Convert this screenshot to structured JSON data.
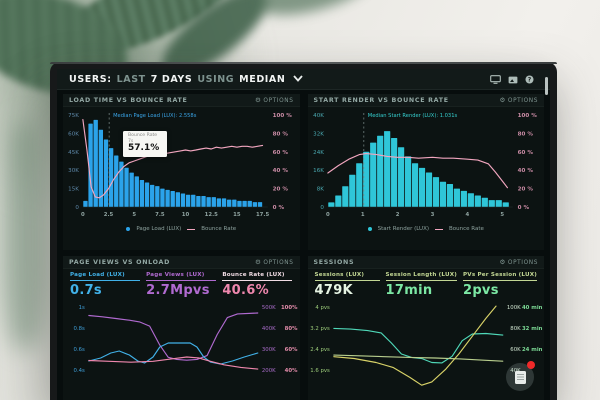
{
  "header": {
    "parts": [
      {
        "t": "USERS:"
      },
      {
        "t": "LAST"
      },
      {
        "t": "7 DAYS"
      },
      {
        "t": "USING"
      },
      {
        "t": "MEDIAN"
      }
    ],
    "dropdown_icon": "chevron-down-icon",
    "icons": [
      "monitor-icon",
      "image-icon",
      "help-icon"
    ]
  },
  "options": {
    "label": "OPTIONS",
    "icon": "gear-icon"
  },
  "panels": {
    "load_time": {
      "title": "LOAD TIME VS BOUNCE RATE"
    },
    "start_render": {
      "title": "START RENDER VS BOUNCE RATE"
    },
    "page_views": {
      "title": "PAGE VIEWS VS ONLOAD",
      "metrics": [
        {
          "label": "Page Load (LUX)",
          "value": "0.7s",
          "color": "#41b1e8",
          "label_color": "#41b1e8"
        },
        {
          "label": "Page Views (LUX)",
          "value": "2.7Mpvs",
          "color": "#b06ad0",
          "label_color": "#b06ad0"
        },
        {
          "label": "Bounce Rate (LUX)",
          "value": "40.6%",
          "color": "#ef87ad",
          "label_color": "#f2dde5"
        }
      ]
    },
    "sessions": {
      "title": "SESSIONS",
      "metrics": [
        {
          "label": "Sessions (LUX)",
          "value": "479K",
          "color": "#e6f4e3",
          "label_color": "#c3d794"
        },
        {
          "label": "Session Length (LUX)",
          "value": "17min",
          "color": "#7ce8a4",
          "label_color": "#c3d794"
        },
        {
          "label": "PVs Per Session (LUX)",
          "value": "2pvs",
          "color": "#7ce8a4",
          "label_color": "#c3d794"
        }
      ]
    }
  },
  "fab": {
    "icon": "notes-icon",
    "badge": "notification-dot",
    "badge_color": "#ef2929"
  },
  "chart_data": [
    {
      "id": "load_time",
      "type": "histogram_line",
      "title": "LOAD TIME VS BOUNCE RATE",
      "xmax": 18,
      "bar_max": 75,
      "bar_width_s": 0.5,
      "bars": [
        5,
        68,
        71,
        63,
        55,
        48,
        42,
        37,
        32,
        28,
        25,
        22,
        20,
        18,
        17,
        15,
        14,
        13,
        12,
        11,
        10,
        10,
        9,
        9,
        8,
        8,
        7,
        7,
        6,
        6,
        5,
        5,
        5,
        4,
        4
      ],
      "bar_color": "#2ba3ea",
      "left_ticks": [
        "75K",
        "60K",
        "45K",
        "30K",
        "15K",
        "0"
      ],
      "left_color": "#5d87a8",
      "right_ticks": [
        "100 %",
        "80 %",
        "60 %",
        "40 %",
        "20 %",
        "0 %"
      ],
      "right_color": "#c98ba4",
      "x_ticks": [
        0,
        2.5,
        5,
        7.5,
        10,
        12.5,
        15,
        17.5
      ],
      "x_color": "#8fa3a0",
      "line": {
        "name": "Bounce Rate",
        "color": "#f2a6bf",
        "points": [
          [
            0,
            95
          ],
          [
            0.4,
            62
          ],
          [
            0.8,
            22
          ],
          [
            1.2,
            11
          ],
          [
            1.6,
            10
          ],
          [
            2,
            13
          ],
          [
            2.5,
            20
          ],
          [
            3,
            30
          ],
          [
            3.5,
            38
          ],
          [
            4,
            44
          ],
          [
            4.5,
            48
          ],
          [
            5,
            50
          ],
          [
            5.5,
            52
          ],
          [
            6,
            54
          ],
          [
            6.5,
            56
          ],
          [
            7,
            57.1
          ],
          [
            7.5,
            57
          ],
          [
            8,
            58
          ],
          [
            8.5,
            59
          ],
          [
            9,
            60
          ],
          [
            9.5,
            61
          ],
          [
            10,
            62
          ],
          [
            10.5,
            61
          ],
          [
            11,
            62
          ],
          [
            11.5,
            63
          ],
          [
            12,
            64
          ],
          [
            12.5,
            63
          ],
          [
            13,
            65
          ],
          [
            13.5,
            64
          ],
          [
            14,
            65
          ],
          [
            14.5,
            66
          ],
          [
            15,
            65
          ],
          [
            15.5,
            66
          ],
          [
            16,
            66
          ],
          [
            16.5,
            65
          ],
          [
            17,
            66
          ],
          [
            17.5,
            67
          ]
        ]
      },
      "median": {
        "value": 2.558,
        "label": "Median Page Load (LUX): 2.558s",
        "color": "#3aa5e8"
      },
      "legend": [
        {
          "swatch": "dot",
          "color": "#2ba3ea",
          "label": "Page Load (LUX)"
        },
        {
          "swatch": "line",
          "color": "#f2a6bf",
          "label": "Bounce Rate"
        }
      ],
      "tooltip": {
        "title": "Bounce Rate",
        "x_label": "7s",
        "value": "57.1%",
        "at_x": 7,
        "at_y": 57.1
      }
    },
    {
      "id": "start_render",
      "type": "histogram_line",
      "title": "START RENDER VS BOUNCE RATE",
      "xmax": 5.3,
      "bar_max": 40,
      "bar_width_s": 0.2,
      "bars": [
        2,
        5,
        9,
        14,
        19,
        24,
        28,
        31,
        33,
        30,
        26,
        22,
        19,
        17,
        15,
        13,
        11,
        10,
        8,
        7,
        6,
        5,
        4,
        3,
        3,
        2
      ],
      "bar_color": "#2fc6d8",
      "left_ticks": [
        "40K",
        "32K",
        "24K",
        "16K",
        "8K",
        "0"
      ],
      "left_color": "#4aa8b0",
      "right_ticks": [
        "100 %",
        "80 %",
        "60 %",
        "40 %",
        "20 %",
        "0 %"
      ],
      "right_color": "#c98ba4",
      "x_ticks": [
        0,
        1,
        2,
        3,
        4,
        5
      ],
      "x_color": "#8fa3a0",
      "line": {
        "name": "Bounce Rate",
        "color": "#f2a6bf",
        "points": [
          [
            0,
            37
          ],
          [
            0.3,
            45
          ],
          [
            0.6,
            52
          ],
          [
            0.9,
            57
          ],
          [
            1.1,
            58
          ],
          [
            1.4,
            57
          ],
          [
            1.7,
            55
          ],
          [
            2,
            54
          ],
          [
            2.3,
            54
          ],
          [
            2.6,
            53
          ],
          [
            3,
            54
          ],
          [
            3.3,
            53
          ],
          [
            3.6,
            53
          ],
          [
            4,
            52
          ],
          [
            4.3,
            51
          ],
          [
            4.6,
            47
          ],
          [
            4.8,
            38
          ],
          [
            5.05,
            26
          ],
          [
            5.15,
            21
          ]
        ]
      },
      "median": {
        "value": 1.031,
        "label": "Median Start Render (LUX): 1.031s",
        "color": "#35cfcf"
      },
      "legend": [
        {
          "swatch": "dot",
          "color": "#2fc6d8",
          "label": "Start Render (LUX)"
        },
        {
          "swatch": "line",
          "color": "#f2a6bf",
          "label": "Bounce Rate"
        }
      ]
    },
    {
      "id": "pageviews_onload",
      "type": "multi_line",
      "title": "PAGE VIEWS VS ONLOAD",
      "left_ticks": [
        "1s",
        "0.8s",
        "0.6s",
        "0.4s"
      ],
      "left_color": "#3f9fd8",
      "right_ticks": [
        [
          "500K",
          "100%"
        ],
        [
          "400K",
          "80%"
        ],
        [
          "300K",
          "60%"
        ],
        [
          "200K",
          "40%"
        ]
      ],
      "right_colors": [
        "#a86cc8",
        "#e08aa8"
      ],
      "series": [
        {
          "name": "Page Views (LUX)",
          "color": "#b06ad0",
          "range": [
            150,
            520
          ],
          "points": [
            [
              0,
              470
            ],
            [
              0.08,
              464
            ],
            [
              0.16,
              456
            ],
            [
              0.24,
              448
            ],
            [
              0.3,
              440
            ],
            [
              0.36,
              420
            ],
            [
              0.42,
              330
            ],
            [
              0.47,
              272
            ],
            [
              0.52,
              262
            ],
            [
              0.58,
              258
            ],
            [
              0.64,
              262
            ],
            [
              0.7,
              280
            ],
            [
              0.76,
              380
            ],
            [
              0.82,
              460
            ],
            [
              0.88,
              478
            ],
            [
              1,
              482
            ]
          ]
        },
        {
          "name": "Page Load (LUX)",
          "color": "#41b1e8",
          "range": [
            0.3,
            1.08
          ],
          "points": [
            [
              0,
              0.52
            ],
            [
              0.07,
              0.55
            ],
            [
              0.13,
              0.6
            ],
            [
              0.18,
              0.62
            ],
            [
              0.24,
              0.58
            ],
            [
              0.29,
              0.52
            ],
            [
              0.33,
              0.5
            ],
            [
              0.38,
              0.56
            ],
            [
              0.42,
              0.66
            ],
            [
              0.47,
              0.7
            ],
            [
              0.55,
              0.7
            ],
            [
              0.6,
              0.7
            ],
            [
              0.64,
              0.66
            ],
            [
              0.68,
              0.56
            ],
            [
              0.72,
              0.51
            ],
            [
              0.78,
              0.49
            ],
            [
              0.85,
              0.52
            ],
            [
              0.92,
              0.56
            ],
            [
              1,
              0.6
            ]
          ]
        },
        {
          "name": "Bounce Rate (LUX)",
          "color": "#ef87ad",
          "range": [
            18,
            108
          ],
          "points": [
            [
              0,
              44
            ],
            [
              0.12,
              43
            ],
            [
              0.25,
              42
            ],
            [
              0.38,
              43
            ],
            [
              0.5,
              46
            ],
            [
              0.58,
              48
            ],
            [
              0.65,
              47
            ],
            [
              0.72,
              43
            ],
            [
              0.8,
              39
            ],
            [
              0.9,
              36
            ],
            [
              1,
              34
            ]
          ]
        }
      ]
    },
    {
      "id": "sessions",
      "type": "multi_line",
      "title": "SESSIONS",
      "left_ticks": [
        "4 pvs",
        "3.2 pvs",
        "2.4 pvs",
        "1.6 pvs"
      ],
      "left_color": "#9ccb7a",
      "right_ticks": [
        [
          "100K",
          "40 min"
        ],
        [
          "80K",
          "32 min"
        ],
        [
          "60K",
          "24 min"
        ],
        [
          "40K",
          ""
        ]
      ],
      "right_colors": [
        "#cfe3cf",
        "#7bd894"
      ],
      "series": [
        {
          "name": "Sessions (LUX)",
          "color": "#4fd8b8",
          "range": [
            0.8,
            4.3
          ],
          "points": [
            [
              0,
              3.25
            ],
            [
              0.1,
              3.22
            ],
            [
              0.2,
              3.15
            ],
            [
              0.28,
              3.05
            ],
            [
              0.34,
              2.6
            ],
            [
              0.4,
              2.1
            ],
            [
              0.46,
              1.95
            ],
            [
              0.52,
              1.9
            ],
            [
              0.58,
              1.72
            ],
            [
              0.64,
              1.7
            ],
            [
              0.7,
              2.0
            ],
            [
              0.76,
              2.7
            ],
            [
              0.82,
              3.0
            ],
            [
              0.9,
              3.02
            ],
            [
              1,
              2.95
            ]
          ]
        },
        {
          "name": "Session Length (LUX)",
          "color": "#b9cf8e",
          "range": [
            0.8,
            4.3
          ],
          "points": [
            [
              0,
              2.05
            ],
            [
              0.15,
              2.02
            ],
            [
              0.3,
              1.98
            ],
            [
              0.45,
              1.95
            ],
            [
              0.6,
              1.92
            ],
            [
              0.75,
              1.88
            ],
            [
              0.9,
              1.82
            ],
            [
              1,
              1.78
            ]
          ]
        },
        {
          "name": "PVs Per Session (LUX)",
          "color": "#d8d268",
          "range": [
            0.8,
            4.3
          ],
          "points": [
            [
              0,
              1.98
            ],
            [
              0.12,
              1.9
            ],
            [
              0.25,
              1.72
            ],
            [
              0.35,
              1.5
            ],
            [
              0.45,
              1.05
            ],
            [
              0.52,
              0.7
            ],
            [
              0.58,
              0.85
            ],
            [
              0.66,
              1.4
            ],
            [
              0.74,
              2.1
            ],
            [
              0.82,
              2.9
            ],
            [
              0.9,
              3.7
            ],
            [
              0.96,
              4.25
            ]
          ]
        }
      ]
    }
  ]
}
